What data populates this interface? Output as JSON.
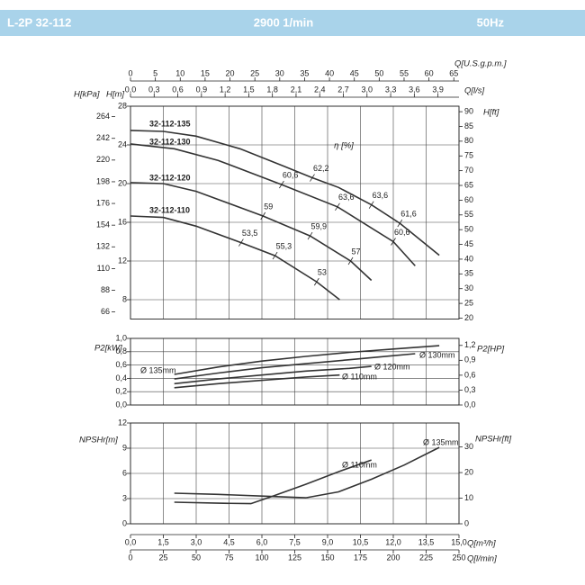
{
  "header": {
    "model": "L-2P 32-112",
    "speed": "2900 1/min",
    "frequency": "50Hz"
  },
  "flow_axes": [
    {
      "label": "Q[U.S.g.p.m.]",
      "side": "top",
      "xlim": [
        0,
        66.04
      ],
      "xticks": [
        0,
        5,
        10,
        15,
        20,
        25,
        30,
        35,
        40,
        45,
        50,
        55,
        60,
        65
      ]
    },
    {
      "label": "Q[l/s]",
      "side": "top",
      "xlim": [
        0,
        4.1667
      ],
      "xticks": [
        {
          "value": 0,
          "label": "0,0"
        },
        {
          "value": 0.3,
          "label": "0,3"
        },
        {
          "value": 0.6,
          "label": "0,6"
        },
        {
          "value": 0.9,
          "label": "0,9"
        },
        {
          "value": 1.2,
          "label": "1,2"
        },
        {
          "value": 1.5,
          "label": "1,5"
        },
        {
          "value": 1.8,
          "label": "1,8"
        },
        {
          "value": 2.1,
          "label": "2,1"
        },
        {
          "value": 2.4,
          "label": "2,4"
        },
        {
          "value": 2.7,
          "label": "2,7"
        },
        {
          "value": 3.0,
          "label": "3,0"
        },
        {
          "value": 3.3,
          "label": "3,3"
        },
        {
          "value": 3.6,
          "label": "3,6"
        },
        {
          "value": 3.9,
          "label": "3,9"
        }
      ]
    },
    {
      "label": "Q[m³/h]",
      "side": "bottom",
      "xlim": [
        0,
        15
      ],
      "xticks": [
        {
          "value": 0,
          "label": "0,0"
        },
        {
          "value": 1.5,
          "label": "1,5"
        },
        {
          "value": 3,
          "label": "3,0"
        },
        {
          "value": 4.5,
          "label": "4,5"
        },
        {
          "value": 6,
          "label": "6,0"
        },
        {
          "value": 7.5,
          "label": "7,5"
        },
        {
          "value": 9,
          "label": "9,0"
        },
        {
          "value": 10.5,
          "label": "10,5"
        },
        {
          "value": 12,
          "label": "12,0"
        },
        {
          "value": 13.5,
          "label": "13,5"
        },
        {
          "value": 15,
          "label": "15,0"
        }
      ]
    },
    {
      "label": "Q[l/min]",
      "side": "bottom",
      "xlim": [
        0,
        250
      ],
      "xticks": [
        0,
        25,
        50,
        75,
        100,
        125,
        150,
        175,
        200,
        225,
        250
      ]
    }
  ],
  "chart_data": [
    {
      "type": "line",
      "xlim": [
        0,
        15
      ],
      "ylabel": "H[m]",
      "ylim": [
        6,
        28
      ],
      "yticks": [
        8,
        12,
        16,
        20,
        24,
        28
      ],
      "y2label": "H[ft]",
      "y2lim": [
        19.69,
        91.86
      ],
      "y2ticks": [
        20,
        25,
        30,
        35,
        40,
        45,
        50,
        55,
        60,
        65,
        70,
        75,
        80,
        85,
        90
      ],
      "y3label": "H[kPa]",
      "y3lim": [
        58.8,
        274.6
      ],
      "y3ticks": [
        66,
        88,
        110,
        132,
        154,
        176,
        198,
        220,
        242,
        264
      ],
      "annotation": "η [%]",
      "grid": true,
      "series": [
        {
          "name": "32-112-135",
          "color": "#333333",
          "x": [
            0,
            1.5,
            3,
            5,
            7,
            8.3,
            9.5,
            11,
            12.3,
            14.1
          ],
          "values": [
            25.5,
            25.4,
            24.9,
            23.6,
            21.8,
            20.6,
            19.6,
            17.8,
            15.9,
            12.6
          ],
          "efficiency": [
            null,
            null,
            null,
            null,
            null,
            62.2,
            null,
            63.6,
            61.6,
            null
          ],
          "efficiency_labels": [
            null,
            null,
            null,
            null,
            null,
            "62,2",
            null,
            "63,6",
            "61,6",
            null
          ]
        },
        {
          "name": "32-112-130",
          "color": "#333333",
          "x": [
            0,
            2,
            4,
            6.9,
            9.45,
            12,
            13
          ],
          "values": [
            24.1,
            23.6,
            22.4,
            19.9,
            17.6,
            14.0,
            11.5
          ],
          "efficiency": [
            null,
            null,
            null,
            60.6,
            63.6,
            60.6,
            null
          ],
          "efficiency_labels": [
            null,
            null,
            null,
            "60,6",
            "63,6",
            "60,6",
            null
          ]
        },
        {
          "name": "32-112-120",
          "color": "#333333",
          "x": [
            0,
            1.5,
            3,
            6.05,
            8.2,
            10.05,
            11
          ],
          "values": [
            20.1,
            20.0,
            19.2,
            16.65,
            14.6,
            12.0,
            10.0
          ],
          "efficiency": [
            null,
            null,
            null,
            59,
            59.9,
            57,
            null
          ],
          "efficiency_labels": [
            null,
            null,
            null,
            "59",
            "59,9",
            "57",
            null
          ]
        },
        {
          "name": "32-112-110",
          "color": "#333333",
          "x": [
            0,
            1.5,
            3,
            5.05,
            6.6,
            8.5,
            9.55
          ],
          "values": [
            16.65,
            16.5,
            15.6,
            13.9,
            12.55,
            9.85,
            8.0
          ],
          "efficiency": [
            null,
            null,
            null,
            53.5,
            55.3,
            53,
            null
          ],
          "efficiency_labels": [
            null,
            null,
            null,
            "53,5",
            "55,3",
            "53",
            null
          ]
        }
      ]
    },
    {
      "type": "line",
      "xlim": [
        0,
        15
      ],
      "ylabel": "P2[kW]",
      "ylim": [
        0,
        1.0
      ],
      "yticks": [
        {
          "value": 0,
          "label": "0,0"
        },
        {
          "value": 0.2,
          "label": "0,2"
        },
        {
          "value": 0.4,
          "label": "0,4"
        },
        {
          "value": 0.6,
          "label": "0,6"
        },
        {
          "value": 0.8,
          "label": "0,8"
        },
        {
          "value": 1.0,
          "label": "1,0"
        }
      ],
      "y2label": "P2[HP]",
      "y2lim": [
        0,
        1.341
      ],
      "y2ticks": [
        {
          "value": 0,
          "label": "0,0"
        },
        {
          "value": 0.3,
          "label": "0,3"
        },
        {
          "value": 0.6,
          "label": "0,6"
        },
        {
          "value": 0.9,
          "label": "0,9"
        },
        {
          "value": 1.2,
          "label": "1,2"
        }
      ],
      "grid": true,
      "series": [
        {
          "name": "Ø 135mm",
          "color": "#333333",
          "x": [
            2,
            4,
            6,
            8,
            10,
            12,
            14.1
          ],
          "values": [
            0.46,
            0.57,
            0.66,
            0.73,
            0.79,
            0.84,
            0.89
          ]
        },
        {
          "name": "Ø 130mm",
          "color": "#333333",
          "x": [
            2,
            4,
            6,
            8,
            10,
            12,
            13
          ],
          "values": [
            0.39,
            0.48,
            0.56,
            0.62,
            0.68,
            0.74,
            0.77
          ]
        },
        {
          "name": "Ø 120mm",
          "color": "#333333",
          "x": [
            2,
            4,
            6,
            8,
            10,
            11
          ],
          "values": [
            0.32,
            0.39,
            0.45,
            0.51,
            0.55,
            0.58
          ]
        },
        {
          "name": "Ø 110mm",
          "color": "#333333",
          "x": [
            2,
            4,
            6,
            8,
            9.55
          ],
          "values": [
            0.26,
            0.32,
            0.37,
            0.42,
            0.45
          ]
        }
      ]
    },
    {
      "type": "line",
      "xlim": [
        0,
        15
      ],
      "ylabel": "NPSHr[m]",
      "ylim": [
        0,
        12
      ],
      "yticks": [
        0,
        3,
        6,
        9,
        12
      ],
      "y2label": "NPSHr[ft]",
      "y2lim": [
        0,
        39.37
      ],
      "y2ticks": [
        0,
        10,
        20,
        30
      ],
      "grid": true,
      "series": [
        {
          "name": "Ø 135mm",
          "color": "#333333",
          "x": [
            2,
            4,
            6,
            8,
            9.5,
            11,
            12.5,
            14.1
          ],
          "values": [
            3.64,
            3.5,
            3.3,
            3.1,
            3.8,
            5.3,
            7.0,
            9.1
          ]
        },
        {
          "name": "Ø 110mm",
          "color": "#333333",
          "x": [
            2,
            4,
            5.5,
            6.5,
            8,
            9.5,
            11
          ],
          "values": [
            2.57,
            2.45,
            2.4,
            3.3,
            4.7,
            6.2,
            7.6
          ]
        }
      ]
    }
  ]
}
